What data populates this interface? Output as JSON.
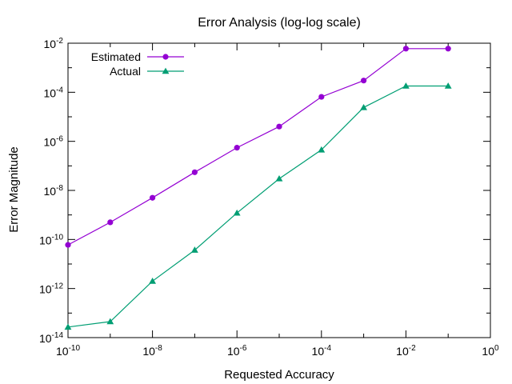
{
  "chart_data": {
    "type": "line",
    "title": "Error Analysis (log-log scale)",
    "xlabel": "Requested Accuracy",
    "ylabel": "Error Magnitude",
    "xscale": "log",
    "yscale": "log",
    "xlim": [
      1e-10,
      1
    ],
    "ylim": [
      1e-14,
      0.01
    ],
    "grid": false,
    "legend_position": "top-left",
    "x": [
      1e-10,
      1e-09,
      1e-08,
      1e-07,
      1e-06,
      1e-05,
      0.0001,
      0.001,
      0.01,
      0.1
    ],
    "series": [
      {
        "name": "Estimated",
        "color": "#9400d3",
        "marker": "circle",
        "values": [
          6e-11,
          5e-10,
          5e-09,
          5.5e-08,
          5.5e-07,
          4e-06,
          6.5e-05,
          0.0003,
          0.006,
          0.006
        ]
      },
      {
        "name": "Actual",
        "color": "#009e73",
        "marker": "triangle",
        "values": [
          2.7e-14,
          4.5e-14,
          2e-12,
          3.7e-11,
          1.2e-09,
          3e-08,
          4.5e-07,
          2.4e-05,
          0.00018,
          0.00018
        ]
      }
    ],
    "x_ticks": [
      {
        "base": "10",
        "exp": "-10",
        "value": 1e-10
      },
      {
        "base": "10",
        "exp": "-8",
        "value": 1e-08
      },
      {
        "base": "10",
        "exp": "-6",
        "value": 1e-06
      },
      {
        "base": "10",
        "exp": "-4",
        "value": 0.0001
      },
      {
        "base": "10",
        "exp": "-2",
        "value": 0.01
      },
      {
        "base": "10",
        "exp": "0",
        "value": 1
      }
    ],
    "y_ticks": [
      {
        "base": "10",
        "exp": "-14",
        "value": 1e-14
      },
      {
        "base": "10",
        "exp": "-12",
        "value": 1e-12
      },
      {
        "base": "10",
        "exp": "-10",
        "value": 1e-10
      },
      {
        "base": "10",
        "exp": "-8",
        "value": 1e-08
      },
      {
        "base": "10",
        "exp": "-6",
        "value": 1e-06
      },
      {
        "base": "10",
        "exp": "-4",
        "value": 0.0001
      },
      {
        "base": "10",
        "exp": "-2",
        "value": 0.01
      }
    ]
  }
}
